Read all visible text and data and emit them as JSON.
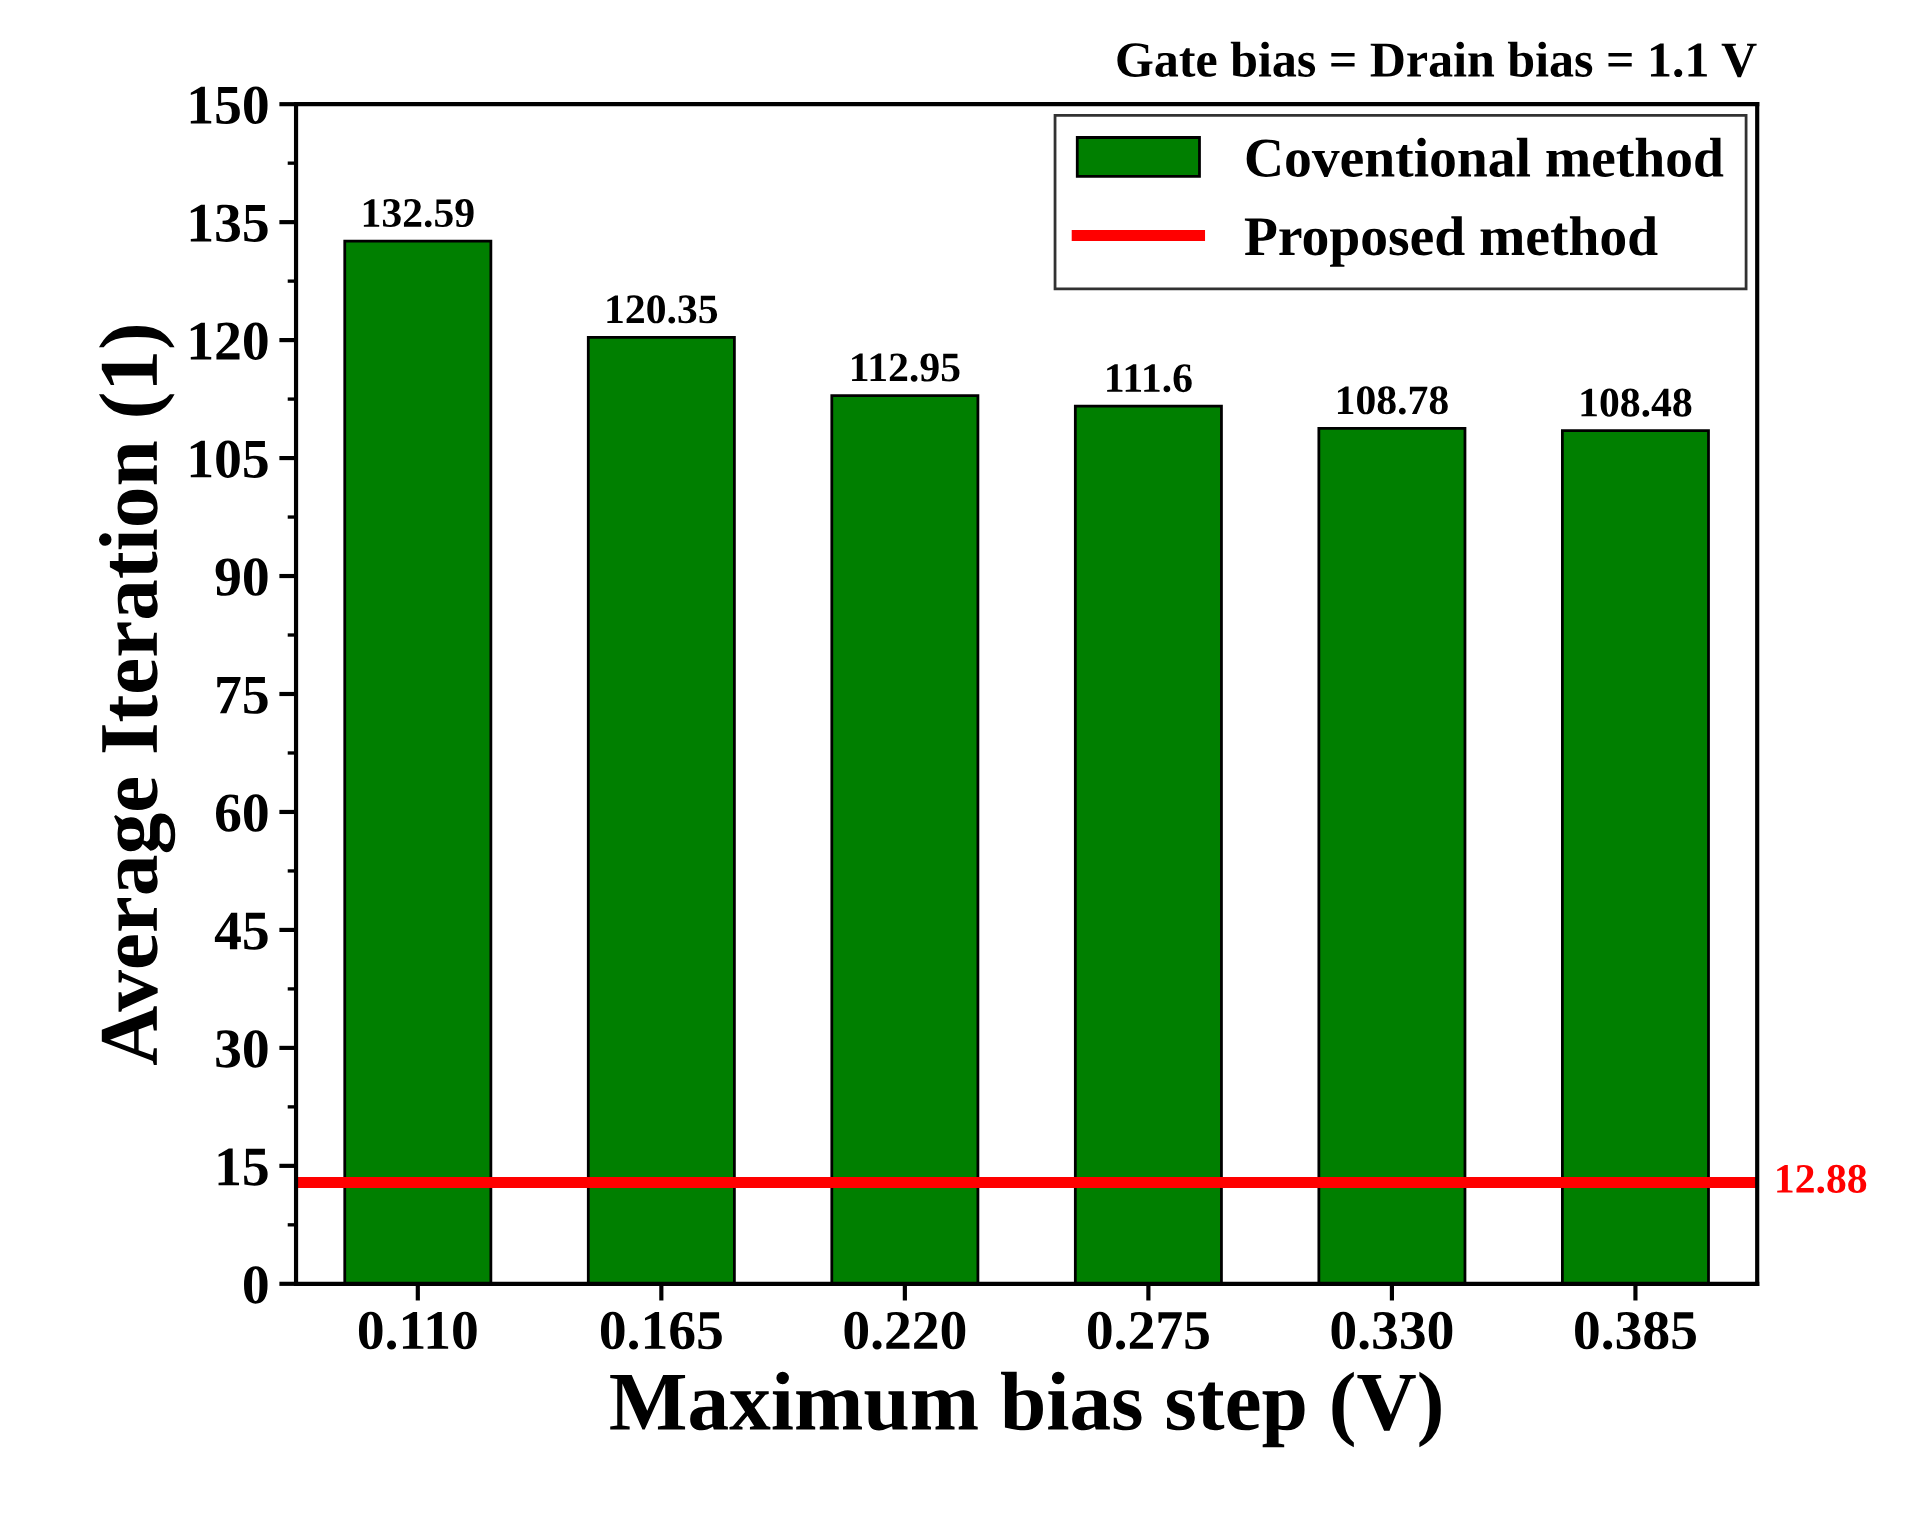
{
  "chart_data": {
    "type": "bar",
    "title": "Gate bias = Drain bias = 1.1 V",
    "xlabel": "Maximum bias step (V)",
    "ylabel": "Average Iteration (1)",
    "categories": [
      "0.110",
      "0.165",
      "0.220",
      "0.275",
      "0.330",
      "0.385"
    ],
    "series": [
      {
        "name": "Coventional method",
        "color": "#007f00",
        "values": [
          132.59,
          120.35,
          112.95,
          111.6,
          108.78,
          108.48
        ]
      }
    ],
    "ref_lines": [
      {
        "axis": "y",
        "value": 12.88,
        "label": "Proposed method",
        "color": "#ff0000",
        "line_style": "solid"
      }
    ],
    "annotations": [
      "12.88"
    ],
    "data_labels": true,
    "ylim": [
      0,
      150
    ],
    "yticks": [
      0,
      15,
      30,
      45,
      60,
      75,
      90,
      105,
      120,
      135,
      150
    ],
    "grid": false,
    "legend": "top right"
  }
}
